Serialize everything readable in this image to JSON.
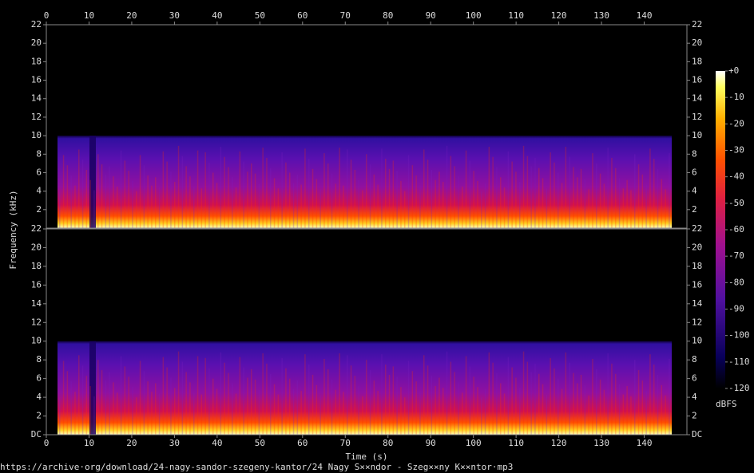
{
  "chart_data": [
    {
      "type": "spectrogram",
      "y_label": "Frequency (kHz)",
      "xlim": [
        0,
        150
      ],
      "xticks": [
        0,
        10,
        20,
        30,
        40,
        50,
        60,
        70,
        80,
        90,
        100,
        110,
        120,
        130,
        140
      ],
      "ylim": [
        0,
        22
      ],
      "yticks": [
        2,
        4,
        6,
        8,
        10,
        12,
        14,
        16,
        18,
        20,
        22
      ]
    },
    {
      "type": "spectrogram",
      "x_label": "Time (s)",
      "xlim": [
        0,
        150
      ],
      "xticks": [
        0,
        10,
        20,
        30,
        40,
        50,
        60,
        70,
        80,
        90,
        100,
        110,
        120,
        130,
        140
      ],
      "ylim": [
        0,
        22
      ],
      "yticks": [
        {
          "value": 0,
          "label": "DC"
        },
        2,
        4,
        6,
        8,
        10,
        12,
        14,
        16,
        18,
        20,
        22
      ]
    },
    {
      "type": "colorbar",
      "title": "dBFS",
      "ylim": [
        -120,
        0
      ],
      "yticks": [
        {
          "value": 0,
          "label": "+0"
        },
        -10,
        -20,
        -30,
        -40,
        -50,
        -60,
        -70,
        -80,
        -90,
        -100,
        -110,
        -120
      ]
    }
  ],
  "footer": "https://archive·org/download/24-nagy-sandor-szegeny-kantor/24 Nagy S××ndor - Szeg××ny K××ntor·mp3"
}
